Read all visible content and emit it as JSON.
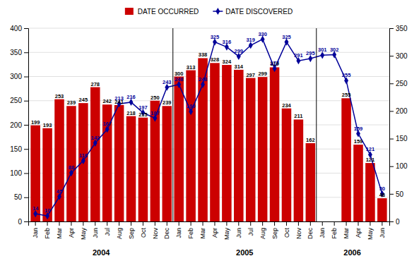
{
  "chart_data": {
    "type": "bar",
    "categories": [
      "Jan",
      "Feb",
      "Mar",
      "Apr",
      "May",
      "Jun",
      "Jul",
      "Aug",
      "Sep",
      "Oct",
      "Nov",
      "Dec",
      "Jan",
      "Feb",
      "Mar",
      "Apr",
      "May",
      "Jun",
      "Jul",
      "Aug",
      "Sep",
      "Oct",
      "Nov",
      "Dec",
      "Jan",
      "Feb",
      "Mar",
      "Apr",
      "May",
      "Jun"
    ],
    "series": [
      {
        "name": "DATE OCCURRED",
        "type": "bar",
        "color": "#cc0000",
        "values": [
          199,
          193,
          253,
          239,
          245,
          278,
          242,
          241,
          218,
          215,
          250,
          239,
          300,
          313,
          338,
          328,
          324,
          314,
          297,
          299,
          319,
          234,
          211,
          162,
          0,
          0,
          255,
          159,
          121,
          48
        ],
        "value_labels": [
          "199",
          "193",
          "253",
          "239",
          "245",
          "278",
          "242",
          "241",
          "218",
          "215",
          "250",
          "239",
          "300",
          "313",
          "338",
          "328",
          "324",
          "314",
          "297",
          "299",
          "319",
          "234",
          "211",
          "162",
          null,
          null,
          "255",
          "159",
          "121",
          "48"
        ]
      },
      {
        "name": "DATE DISCOVERED",
        "type": "line",
        "color": "#000099",
        "marker": "diamond",
        "axis": "y2",
        "values": [
          14,
          10,
          45,
          88,
          110,
          142,
          167,
          213,
          216,
          197,
          187,
          243,
          248,
          199,
          248,
          325,
          316,
          299,
          319,
          330,
          277,
          325,
          291,
          295,
          301,
          302,
          255,
          159,
          121,
          50
        ]
      }
    ],
    "annotations": [
      {
        "text": "2004",
        "from": 0,
        "to": 11
      },
      {
        "text": "2005",
        "from": 12,
        "to": 23
      },
      {
        "text": "2006",
        "from": 24,
        "to": 29
      }
    ],
    "ylim": [
      0,
      400
    ],
    "yticks": [
      0,
      50,
      100,
      150,
      200,
      250,
      300,
      350,
      400
    ],
    "y2lim": [
      0,
      350
    ],
    "y2ticks": [
      0,
      50,
      100,
      150,
      200,
      250,
      300,
      350
    ],
    "grid": true,
    "legend": "top",
    "data_labels": true
  }
}
